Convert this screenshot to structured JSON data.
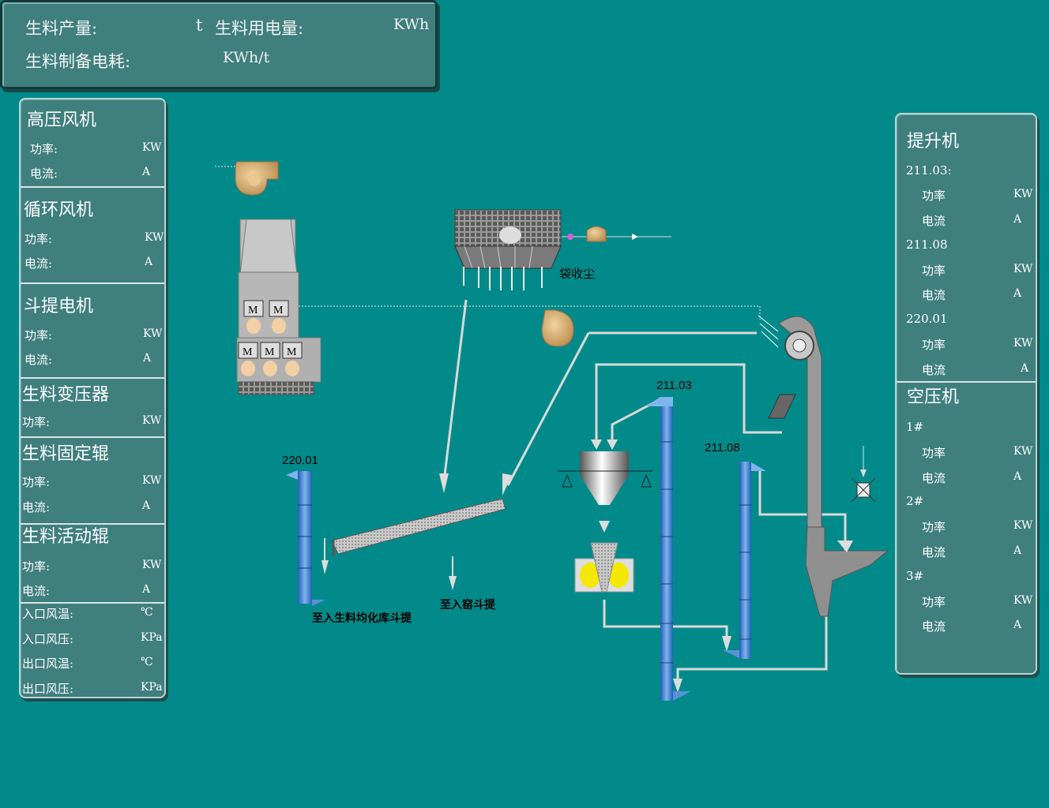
{
  "top": {
    "raw_output_label": "生料产量:",
    "raw_output_unit": "t",
    "raw_power_label": "生料用电量:",
    "raw_power_unit": "KWh",
    "energy_label": "生料制备电耗:",
    "energy_unit": "KWh/t"
  },
  "left": {
    "hp_fan": {
      "title": "高压风机",
      "power": "功率:",
      "power_unit": "KW",
      "current": "电流:",
      "current_unit": "A"
    },
    "circ_fan": {
      "title": "循环风机",
      "power": "功率:",
      "power_unit": "KW",
      "current": "电流:",
      "current_unit": "A"
    },
    "bucket_motor": {
      "title": "斗提电机",
      "power": "功率:",
      "power_unit": "KW",
      "current": "电流:",
      "current_unit": "A"
    },
    "transformer": {
      "title": "生料变压器",
      "power": "功率:",
      "power_unit": "KW"
    },
    "fixed_roll": {
      "title": "生料固定辊",
      "power": "功率:",
      "power_unit": "KW",
      "current": "电流:",
      "current_unit": "A"
    },
    "moving_roll": {
      "title": "生料活动辊",
      "power": "功率:",
      "power_unit": "KW",
      "current": "电流:",
      "current_unit": "A"
    },
    "air": {
      "in_temp": "入口风温:",
      "in_temp_unit": "℃",
      "in_press": "入口风压:",
      "in_press_unit": "KPa",
      "out_temp": "出口风温:",
      "out_temp_unit": "℃",
      "out_press": "出口风压:",
      "out_press_unit": "KPa"
    }
  },
  "right": {
    "elevator": {
      "title": "提升机",
      "e1": {
        "name": "211.03:",
        "power": "功率",
        "power_unit": "KW",
        "current": "电流",
        "current_unit": "A"
      },
      "e2": {
        "name": "211.08",
        "power": "功率",
        "power_unit": "KW",
        "current": "电流",
        "current_unit": "A"
      },
      "e3": {
        "name": "220.01",
        "power": "功率",
        "power_unit": "KW",
        "current": "电流",
        "current_unit": "A"
      }
    },
    "compressor": {
      "title": "空压机",
      "c1": {
        "name": "1#",
        "power": "功率",
        "power_unit": "KW",
        "current": "电流",
        "current_unit": "A"
      },
      "c2": {
        "name": "2#",
        "power": "功率",
        "power_unit": "KW",
        "current": "电流",
        "current_unit": "A"
      },
      "c3": {
        "name": "3#",
        "power": "功率",
        "power_unit": "KW",
        "current": "电流",
        "current_unit": "A"
      }
    }
  },
  "diagram": {
    "dust_collector": "袋收尘",
    "elev_220": "220.01",
    "elev_21103": "211.03",
    "elev_21108": "211.08",
    "to_homo": "至入生料均化库斗提",
    "to_kiln": "至入窑斗提",
    "motor": "M"
  }
}
